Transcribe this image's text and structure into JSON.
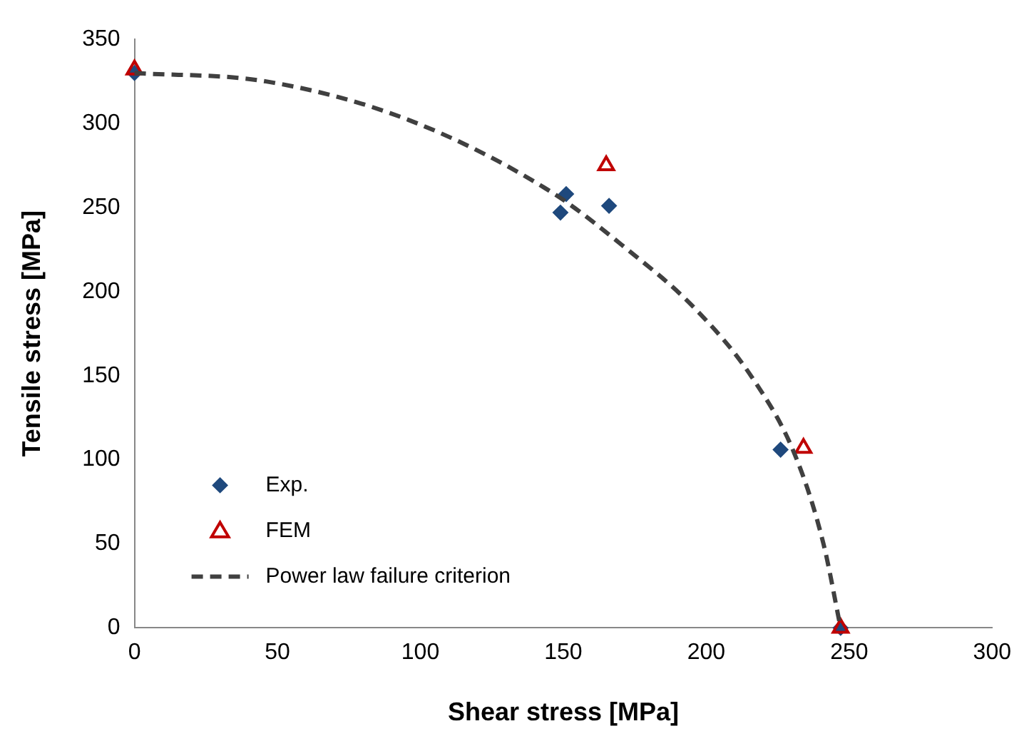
{
  "chart_data": {
    "type": "scatter",
    "xlabel": "Shear stress [MPa]",
    "ylabel": "Tensile stress [MPa]",
    "xlim": [
      0,
      300
    ],
    "xticks": [
      0,
      50,
      100,
      150,
      200,
      250,
      300
    ],
    "ylim": [
      0,
      350
    ],
    "yticks": [
      0,
      50,
      100,
      150,
      200,
      250,
      300,
      350
    ],
    "grid": false,
    "legend": "bottom left",
    "series": [
      {
        "name": "Exp.",
        "type": "scatter",
        "marker": "diamond",
        "color": "#1f497d",
        "x": [
          0,
          149,
          151,
          166,
          226,
          247
        ],
        "values": [
          330,
          247,
          258,
          251,
          106,
          0
        ]
      },
      {
        "name": "FEM",
        "type": "scatter",
        "marker": "triangle",
        "color": "#c00000",
        "x": [
          0,
          165,
          234,
          247
        ],
        "values": [
          332,
          275,
          107,
          0
        ]
      },
      {
        "name": "Power law failure criterion",
        "type": "line",
        "marker": "none",
        "line_style": "dashed",
        "color": "#404040",
        "x": [
          0,
          46,
          96,
          146,
          171,
          196,
          216,
          231,
          241,
          247
        ],
        "values": [
          330,
          325,
          302,
          259,
          227,
          190,
          149,
          103,
          50,
          0
        ]
      }
    ]
  }
}
